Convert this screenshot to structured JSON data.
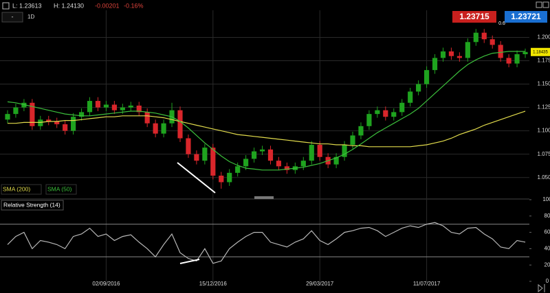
{
  "header": {
    "low": "L: 1.23613",
    "high": "H: 1.24130",
    "change": "-0.00201",
    "change_pct": "-0.16%",
    "dropdown": "-",
    "interval": "1D",
    "sell": "1.23715",
    "spread": "0.6",
    "buy": "1.23721"
  },
  "chart_data": [
    {
      "type": "candlestick",
      "categories": [
        null,
        null,
        null,
        null,
        null,
        null,
        null,
        null,
        null,
        null,
        null,
        null,
        "02/09/2016",
        null,
        null,
        null,
        null,
        null,
        null,
        null,
        null,
        null,
        null,
        null,
        null,
        "15/12/2016",
        null,
        null,
        null,
        null,
        null,
        null,
        null,
        null,
        null,
        null,
        null,
        null,
        "29/03/2017",
        null,
        null,
        null,
        null,
        null,
        null,
        null,
        null,
        null,
        null,
        null,
        null,
        "11/07/2017",
        null,
        null,
        null,
        null,
        null,
        null,
        null,
        null,
        null,
        null,
        null,
        null
      ],
      "open": [
        1.112,
        1.118,
        1.125,
        1.13,
        1.105,
        1.112,
        1.11,
        1.107,
        1.1,
        1.115,
        1.12,
        1.132,
        1.125,
        1.128,
        1.122,
        1.125,
        1.127,
        1.12,
        1.108,
        1.097,
        1.108,
        1.122,
        1.092,
        1.075,
        1.068,
        1.082,
        1.052,
        1.045,
        1.055,
        1.062,
        1.07,
        1.078,
        1.08,
        1.068,
        1.062,
        1.058,
        1.062,
        1.068,
        1.085,
        1.072,
        1.064,
        1.072,
        1.085,
        1.095,
        1.105,
        1.118,
        1.122,
        1.115,
        1.12,
        1.13,
        1.142,
        1.15,
        1.165,
        1.178,
        1.185,
        1.18,
        1.178,
        1.195,
        1.205,
        1.198,
        1.192,
        1.178,
        1.172,
        1.182
      ],
      "high": [
        1.122,
        1.129,
        1.134,
        1.134,
        1.116,
        1.116,
        1.114,
        1.111,
        1.119,
        1.124,
        1.136,
        1.136,
        1.132,
        1.132,
        1.129,
        1.131,
        1.131,
        1.124,
        1.112,
        1.112,
        1.13,
        1.126,
        1.096,
        1.079,
        1.086,
        1.086,
        1.056,
        1.059,
        1.066,
        1.074,
        1.082,
        1.084,
        1.084,
        1.072,
        1.066,
        1.066,
        1.072,
        1.089,
        1.089,
        1.076,
        1.076,
        1.089,
        1.099,
        1.109,
        1.122,
        1.126,
        1.126,
        1.124,
        1.134,
        1.146,
        1.154,
        1.169,
        1.182,
        1.189,
        1.189,
        1.184,
        1.199,
        1.209,
        1.209,
        1.202,
        1.196,
        1.182,
        1.186,
        1.188
      ],
      "low": [
        1.108,
        1.114,
        1.121,
        1.101,
        1.101,
        1.106,
        1.103,
        1.096,
        1.096,
        1.111,
        1.116,
        1.121,
        1.121,
        1.118,
        1.118,
        1.121,
        1.116,
        1.104,
        1.093,
        1.093,
        1.104,
        1.088,
        1.071,
        1.064,
        1.064,
        1.048,
        1.038,
        1.041,
        1.051,
        1.058,
        1.066,
        1.074,
        1.064,
        1.058,
        1.054,
        1.054,
        1.058,
        1.064,
        1.068,
        1.06,
        1.06,
        1.068,
        1.081,
        1.091,
        1.101,
        1.114,
        1.111,
        1.111,
        1.116,
        1.126,
        1.138,
        1.146,
        1.161,
        1.174,
        1.176,
        1.174,
        1.174,
        1.191,
        1.194,
        1.188,
        1.174,
        1.168,
        1.168,
        1.178
      ],
      "close": [
        1.118,
        1.125,
        1.13,
        1.105,
        1.112,
        1.11,
        1.107,
        1.1,
        1.115,
        1.12,
        1.132,
        1.125,
        1.128,
        1.122,
        1.125,
        1.127,
        1.12,
        1.108,
        1.097,
        1.108,
        1.122,
        1.092,
        1.075,
        1.068,
        1.082,
        1.052,
        1.045,
        1.055,
        1.062,
        1.07,
        1.078,
        1.08,
        1.068,
        1.062,
        1.058,
        1.062,
        1.068,
        1.085,
        1.072,
        1.064,
        1.072,
        1.085,
        1.095,
        1.105,
        1.118,
        1.122,
        1.115,
        1.12,
        1.13,
        1.142,
        1.15,
        1.165,
        1.178,
        1.185,
        1.18,
        1.178,
        1.195,
        1.205,
        1.198,
        1.192,
        1.178,
        1.172,
        1.182,
        1.18435
      ],
      "last_label": "1.18435",
      "up_color": "#1fa31f",
      "down_color": "#d9262b",
      "last_color": "#f2e600",
      "series": [
        {
          "name": "SMA (200)",
          "color": "#e2dc4c",
          "values": [
            1.108,
            1.108,
            1.109,
            1.109,
            1.109,
            1.11,
            1.11,
            1.111,
            1.111,
            1.112,
            1.113,
            1.114,
            1.115,
            1.115,
            1.116,
            1.116,
            1.116,
            1.116,
            1.115,
            1.114,
            1.112,
            1.11,
            1.108,
            1.106,
            1.104,
            1.102,
            1.1,
            1.098,
            1.096,
            1.095,
            1.094,
            1.093,
            1.092,
            1.091,
            1.09,
            1.089,
            1.088,
            1.087,
            1.086,
            1.086,
            1.085,
            1.085,
            1.084,
            1.084,
            1.083,
            1.083,
            1.083,
            1.083,
            1.083,
            1.083,
            1.084,
            1.085,
            1.087,
            1.089,
            1.092,
            1.096,
            1.099,
            1.102,
            1.106,
            1.109,
            1.112,
            1.115,
            1.118,
            1.121
          ]
        },
        {
          "name": "SMA (50)",
          "color": "#3cc03c",
          "values": [
            1.131,
            1.13,
            1.128,
            1.126,
            1.124,
            1.122,
            1.12,
            1.118,
            1.117,
            1.116,
            1.116,
            1.117,
            1.118,
            1.119,
            1.12,
            1.121,
            1.121,
            1.12,
            1.119,
            1.117,
            1.115,
            1.11,
            1.103,
            1.095,
            1.087,
            1.08,
            1.073,
            1.067,
            1.063,
            1.06,
            1.059,
            1.058,
            1.058,
            1.058,
            1.059,
            1.06,
            1.061,
            1.063,
            1.065,
            1.068,
            1.071,
            1.075,
            1.08,
            1.086,
            1.092,
            1.098,
            1.103,
            1.108,
            1.113,
            1.118,
            1.124,
            1.132,
            1.14,
            1.148,
            1.156,
            1.164,
            1.171,
            1.176,
            1.18,
            1.183,
            1.184,
            1.185,
            1.185,
            1.185
          ]
        }
      ],
      "ylim": [
        1.027,
        1.229
      ],
      "yticks": [
        {
          "value": 1.05,
          "label": "1.05000"
        },
        {
          "value": 1.075,
          "label": "1.07500"
        },
        {
          "value": 1.1,
          "label": "1.10000"
        },
        {
          "value": 1.125,
          "label": "1.12500"
        },
        {
          "value": 1.15,
          "label": "1.15000"
        },
        {
          "value": 1.175,
          "label": "1.17500"
        },
        {
          "value": 1.2,
          "label": "1.20000"
        }
      ],
      "grid": true
    },
    {
      "type": "line",
      "series": [
        {
          "name": "Relative Strength (14)",
          "color": "#b8b8b8",
          "values": [
            45,
            55,
            60,
            40,
            50,
            48,
            45,
            40,
            55,
            58,
            65,
            55,
            58,
            50,
            55,
            57,
            48,
            40,
            30,
            45,
            58,
            35,
            28,
            25,
            40,
            22,
            25,
            40,
            48,
            55,
            60,
            60,
            48,
            45,
            42,
            48,
            52,
            62,
            50,
            45,
            52,
            60,
            62,
            65,
            66,
            62,
            55,
            60,
            65,
            68,
            66,
            70,
            72,
            68,
            60,
            58,
            65,
            66,
            58,
            52,
            42,
            40,
            50,
            48
          ]
        }
      ],
      "levels": [
        30,
        70
      ],
      "ylim": [
        0,
        100
      ],
      "yticks": [
        0,
        20,
        40,
        60,
        80,
        100
      ]
    }
  ]
}
